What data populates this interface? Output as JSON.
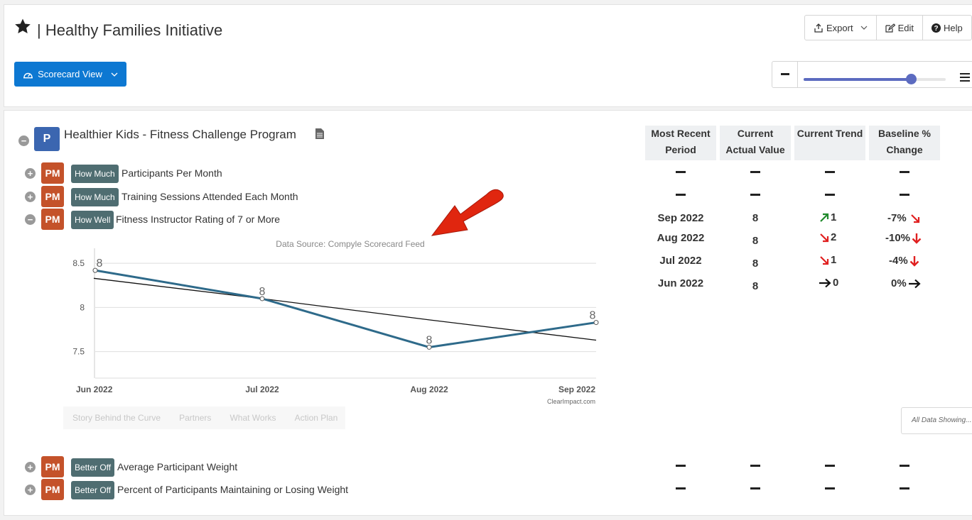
{
  "header": {
    "title": "| Healthy Families Initiative",
    "export_label": "Export",
    "edit_label": "Edit",
    "help_label": "Help",
    "view_button": "Scorecard View",
    "zoom_level": 0.75
  },
  "program": {
    "badge": "P",
    "title": "Healthier Kids - Fitness Challenge Program"
  },
  "columns": {
    "period": [
      "Most Recent",
      "Period"
    ],
    "actual": [
      "Current",
      "Actual Value"
    ],
    "trend": [
      "Current Trend"
    ],
    "baseline": [
      "Baseline %",
      "Change"
    ]
  },
  "measures": [
    {
      "tag": "PM",
      "category": "How Much",
      "name": "Participants Per Month"
    },
    {
      "tag": "PM",
      "category": "How Much",
      "name": "Training Sessions Attended Each Month"
    },
    {
      "tag": "PM",
      "category": "How Well",
      "name": "Fitness Instructor Rating of 7 or More"
    },
    {
      "tag": "PM",
      "category": "Better Off",
      "name": "Average Participant Weight"
    },
    {
      "tag": "PM",
      "category": "Better Off",
      "name": "Percent of Participants Maintaining or Losing Weight"
    }
  ],
  "rating_rows": [
    {
      "period": "Sep 2022",
      "value": "8",
      "trend": "1",
      "baseline": "-7%"
    },
    {
      "period": "Aug 2022",
      "value": "8",
      "trend": "2",
      "baseline": "-10%"
    },
    {
      "period": "Jul 2022",
      "value": "8",
      "trend": "1",
      "baseline": "-4%"
    },
    {
      "period": "Jun 2022",
      "value": "8",
      "trend": "0",
      "baseline": "0%"
    }
  ],
  "tabs": [
    "Story Behind the Curve",
    "Partners",
    "What Works",
    "Action Plan"
  ],
  "all_data_label": "All Data Showing...",
  "colors": {
    "primary": "#0d78d2",
    "pm": "#c4522a",
    "badge": "#4f6d71",
    "line": "#2e6a8a",
    "up": "#1f8a2b",
    "down": "#e02020"
  },
  "chart_data": {
    "type": "line",
    "title": "Data Source: Compyle Scorecard Feed",
    "credit": "ClearImpact.com",
    "categories": [
      "Jun 2022",
      "Jul 2022",
      "Aug 2022",
      "Sep 2022"
    ],
    "series": [
      {
        "values": [
          8.42,
          8.1,
          7.55,
          7.83
        ],
        "labels": [
          "8",
          "8",
          "8",
          "8"
        ]
      }
    ],
    "trendline": [
      8.33,
      8.1,
      7.86,
      7.63
    ],
    "yticks": [
      "8.5",
      "8",
      "7.5"
    ],
    "ylim": [
      7.2,
      8.67
    ],
    "grid": true
  }
}
